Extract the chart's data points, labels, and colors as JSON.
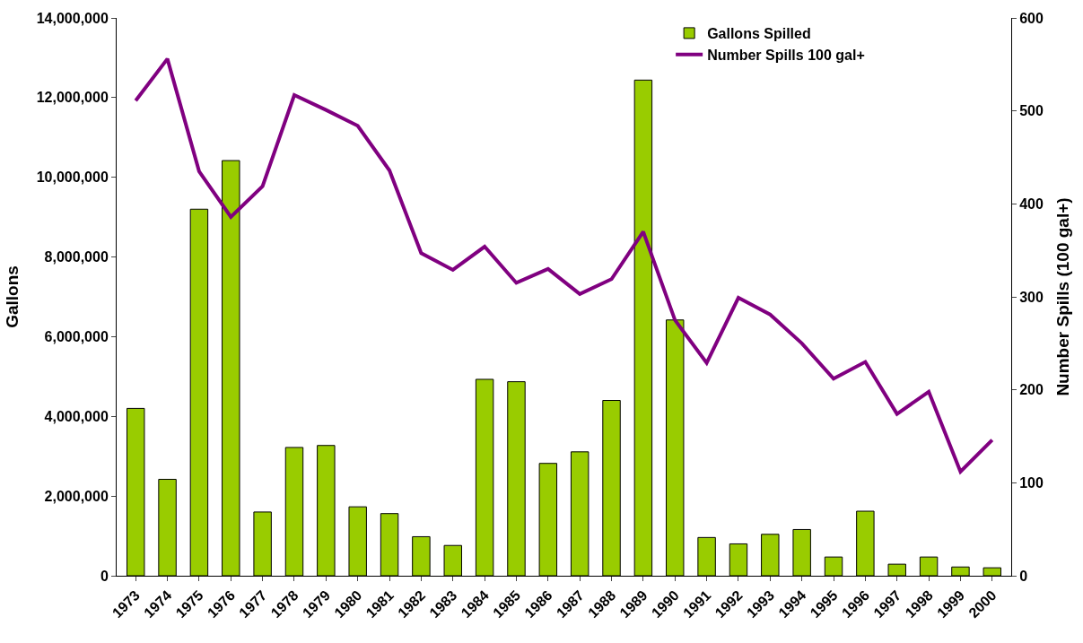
{
  "chart_data": {
    "type": "bar",
    "ylabel": "Gallons",
    "y2label": "Number Spills (100 gal+)",
    "categories": [
      "1973",
      "1974",
      "1975",
      "1976",
      "1977",
      "1978",
      "1979",
      "1980",
      "1981",
      "1982",
      "1983",
      "1984",
      "1985",
      "1986",
      "1987",
      "1988",
      "1989",
      "1990",
      "1991",
      "1992",
      "1993",
      "1994",
      "1995",
      "1996",
      "1997",
      "1998",
      "1999",
      "2000"
    ],
    "series": [
      {
        "name": "Gallons Spilled",
        "color": "#99cc00",
        "values": [
          4200000,
          2420000,
          9200000,
          10420000,
          1600000,
          3220000,
          3270000,
          1730000,
          1560000,
          980000,
          760000,
          4930000,
          4870000,
          2820000,
          3110000,
          4400000,
          12440000,
          6420000,
          960000,
          800000,
          1040000,
          1160000,
          470000,
          1620000,
          290000,
          470000,
          220000,
          200000
        ]
      },
      {
        "name": "Number Spills 100 gal+",
        "type": "line",
        "axis": "y2",
        "color": "#800080",
        "values": [
          511,
          556,
          435,
          386,
          419,
          517,
          501,
          484,
          436,
          347,
          329,
          354,
          315,
          330,
          303,
          319,
          370,
          275,
          229,
          299,
          281,
          250,
          212,
          230,
          174,
          198,
          112,
          146
        ]
      }
    ],
    "ylim": [
      0,
      14000000
    ],
    "yticks": [
      {
        "value": 0,
        "label": "0"
      },
      {
        "value": 2000000,
        "label": "2,000,000"
      },
      {
        "value": 4000000,
        "label": "4,000,000"
      },
      {
        "value": 6000000,
        "label": "6,000,000"
      },
      {
        "value": 8000000,
        "label": "8,000,000"
      },
      {
        "value": 10000000,
        "label": "10,000,000"
      },
      {
        "value": 12000000,
        "label": "12,000,000"
      },
      {
        "value": 14000000,
        "label": "14,000,000"
      }
    ],
    "y2lim": [
      0,
      600
    ],
    "y2ticks": [
      0,
      100,
      200,
      300,
      400,
      500,
      600
    ],
    "legend": "top right",
    "grid": false,
    "marker": "none",
    "line_style": "solid"
  }
}
